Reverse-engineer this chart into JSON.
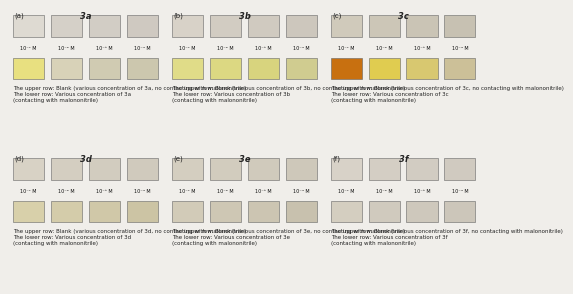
{
  "panels": [
    {
      "label": "(a)",
      "title": "3a",
      "row": 0,
      "col": 0,
      "bg_color": "#b0a898",
      "upper_squares": [
        "#dedad2",
        "#d5d0c8",
        "#d2cdc5",
        "#cfc9c1"
      ],
      "lower_squares": [
        "#e8e080",
        "#d8d2b8",
        "#d0cbb2",
        "#ccc7ae"
      ],
      "conc_labels": [
        "10⁻¹ M",
        "10⁻² M",
        "10⁻³ M",
        "10⁻⁴ M"
      ],
      "caption": "The upper row: Blank (various concentration of 3a, no contacting with malononitrile)\nThe lower row: Various concentration of 3a\n(contacting with malononitrile)"
    },
    {
      "label": "(b)",
      "title": "3b",
      "row": 0,
      "col": 1,
      "bg_color": "#a8a090",
      "upper_squares": [
        "#d8d2c8",
        "#d2ccc2",
        "#d0cac0",
        "#cdc7bd"
      ],
      "lower_squares": [
        "#e0dc88",
        "#dcd882",
        "#d8d47e",
        "#d0cc90"
      ],
      "conc_labels": [
        "10⁻¹ M",
        "10⁻² M",
        "10⁻³ M",
        "10⁻⁴ M"
      ],
      "caption": "The upper row: Blank (various concentration of 3b, no contacting with malononitrile)\nThe lower row: Various concentration of 3b\n(contacting with malononitrile)"
    },
    {
      "label": "(c)",
      "title": "3c",
      "row": 0,
      "col": 2,
      "bg_color": "#a09888",
      "upper_squares": [
        "#d0cabb",
        "#ccc6b7",
        "#cac4b5",
        "#c7c1b2"
      ],
      "lower_squares": [
        "#c87010",
        "#e0cc50",
        "#d8c870",
        "#ccc098"
      ],
      "conc_labels": [
        "10⁻¹ M",
        "10⁻² M",
        "10⁻³ M",
        "10⁻⁴ M"
      ],
      "caption": "The upper row: Blank (various concentration of 3c, no contacting with malononitrile)\nThe lower row: Various concentration of 3c\n(contacting with malononitrile)"
    },
    {
      "label": "(d)",
      "title": "3d",
      "row": 1,
      "col": 0,
      "bg_color": "#a8a090",
      "upper_squares": [
        "#d8d2c5",
        "#d4cec1",
        "#d2ccbf",
        "#d0cabd"
      ],
      "lower_squares": [
        "#d8d0aa",
        "#d4ccaa",
        "#d0c8a8",
        "#ccc4a4"
      ],
      "conc_labels": [
        "10⁻¹ M",
        "10⁻² M",
        "10⁻³ M",
        "10⁻⁴ M"
      ],
      "caption": "The upper row: Blank (various concentration of 3d, no contacting with malononitrile)\nThe lower row: Various concentration of 3d\n(contacting with malononitrile)"
    },
    {
      "label": "(e)",
      "title": "3e",
      "row": 1,
      "col": 1,
      "bg_color": "#a4a094",
      "upper_squares": [
        "#d4cec0",
        "#d2ccbe",
        "#d0cabc",
        "#cec8ba"
      ],
      "lower_squares": [
        "#d2cbb8",
        "#cec7b4",
        "#ccc5b2",
        "#c8c1ae"
      ],
      "conc_labels": [
        "10⁻¹ M",
        "10⁻² M",
        "10⁻³ M",
        "10⁻⁴ M"
      ],
      "caption": "The upper row: Blank (various concentration of 3e, no contacting with malononitrile)\nThe lower row: Various concentration of 3e\n(contacting with malononitrile)"
    },
    {
      "label": "(f)",
      "title": "3f",
      "row": 1,
      "col": 2,
      "bg_color": "#a8a29a",
      "upper_squares": [
        "#d8d2c8",
        "#d4cec4",
        "#d2ccc2",
        "#d0caC0"
      ],
      "lower_squares": [
        "#d4cec0",
        "#d0cabe",
        "#cec8bc",
        "#ccc6ba"
      ],
      "conc_labels": [
        "10⁻¹ M",
        "10⁻² M",
        "10⁻³ M",
        "10⁻⁴ M"
      ],
      "caption": "The upper row: Blank (various concentration of 3f, no contacting with malononitrile)\nThe lower row: Various concentration of 3f\n(contacting with malononitrile)"
    }
  ],
  "fig_bg": "#f0eeea",
  "text_color": "#222222",
  "label_fontsize": 5.0,
  "title_fontsize": 6.0,
  "caption_fontsize": 4.0,
  "conc_fontsize": 3.5
}
